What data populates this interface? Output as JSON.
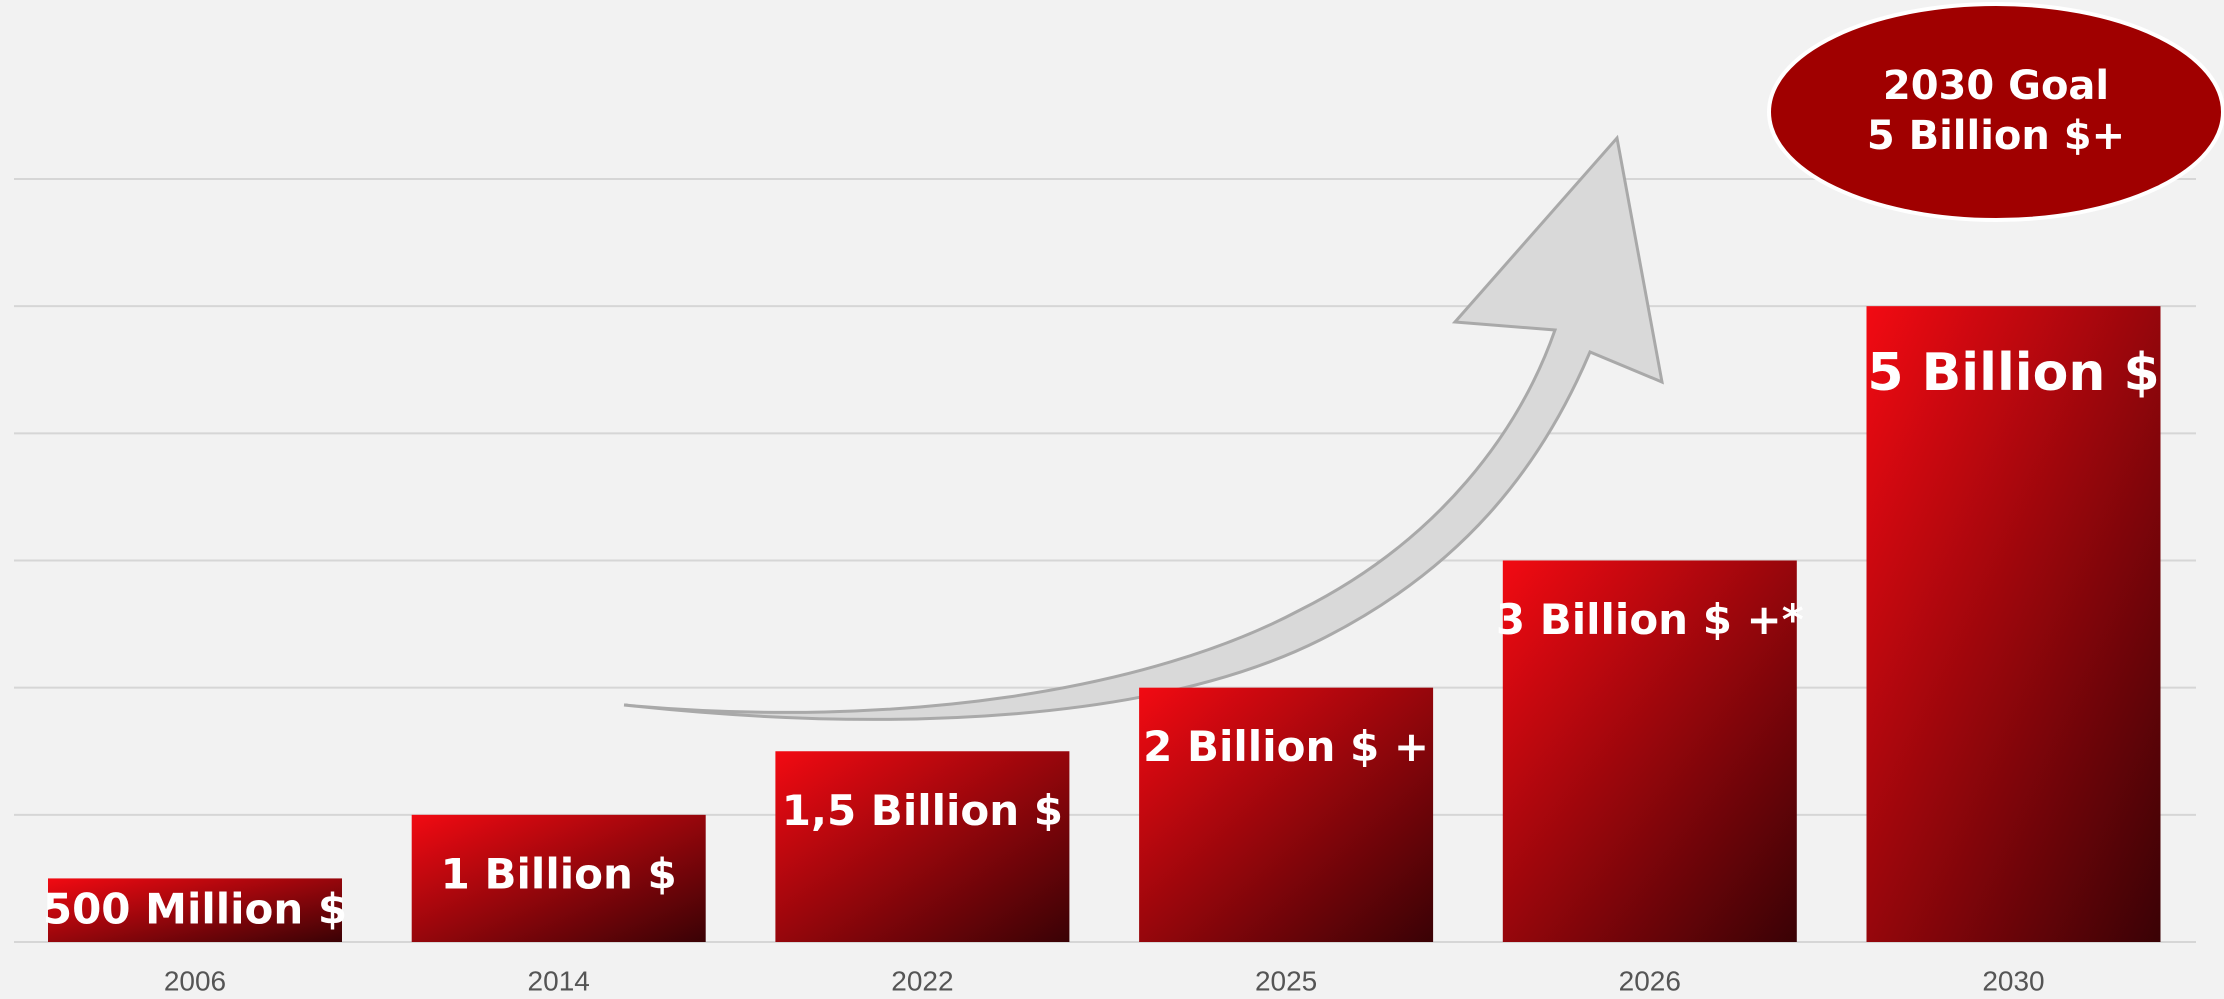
{
  "chart_data": {
    "type": "bar",
    "categories": [
      "2006",
      "2014",
      "2022",
      "2025",
      "2026",
      "2030"
    ],
    "values": [
      0.5,
      1,
      1.5,
      2,
      3,
      5
    ],
    "value_labels": [
      "500 Million $",
      "1 Billion $",
      "1,5 Billion $",
      "2 Billion $ +",
      "3 Billion $ +*",
      "5 Billion $"
    ],
    "color": "#f20a12",
    "ylim": [
      0,
      6
    ],
    "yticks": [
      0,
      1,
      2,
      3,
      4,
      5,
      6
    ],
    "grid": true,
    "annotations": [
      "2030 Goal",
      "5 Billion $+"
    ]
  }
}
